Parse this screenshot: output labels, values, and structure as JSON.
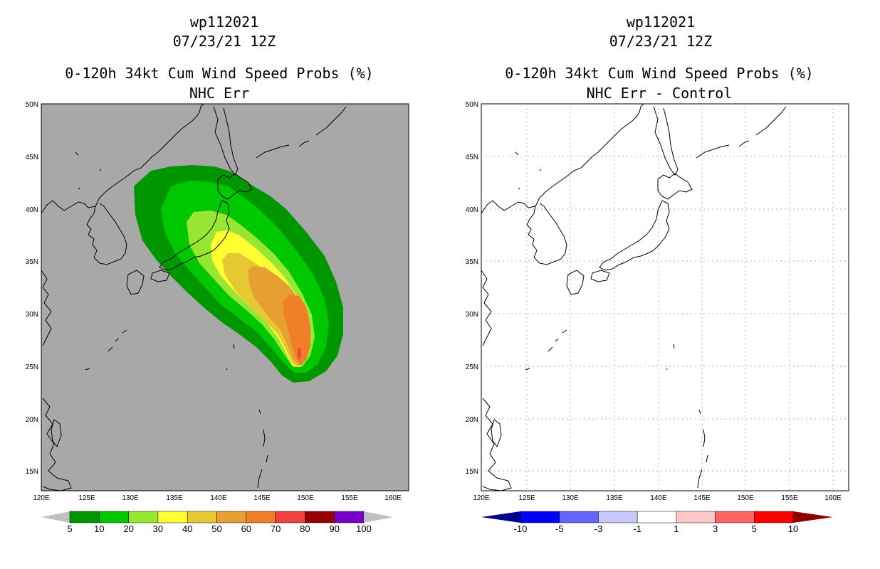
{
  "colors": {
    "land_left": "#a8a8a8",
    "ocean_left": "#a8a8a8",
    "coast": "#000000",
    "grid": "#b0b0b0"
  },
  "left_panel": {
    "title_line1": "wp112021",
    "title_line2": "07/23/21 12Z",
    "title_line3": "0-120h 34kt Cum Wind Speed Probs (%)",
    "title_line4": "NHC Err",
    "lat_labels": [
      "50N",
      "45N",
      "40N",
      "35N",
      "30N",
      "25N",
      "20N",
      "15N"
    ],
    "lon_labels": [
      "120E",
      "125E",
      "130E",
      "135E",
      "140E",
      "145E",
      "150E",
      "155E",
      "160E"
    ],
    "colorbar": {
      "labels": [
        "5",
        "10",
        "20",
        "30",
        "40",
        "50",
        "60",
        "70",
        "80",
        "90",
        "100"
      ],
      "colors": [
        "#009600",
        "#00c800",
        "#96e632",
        "#ffff32",
        "#e6c832",
        "#e6a032",
        "#f07d28",
        "#f04040",
        "#960000",
        "#7800c8"
      ],
      "end_left": "#c0c0c0",
      "end_right": "#c0c0c0"
    }
  },
  "right_panel": {
    "title_line1": "wp112021",
    "title_line2": "07/23/21 12Z",
    "title_line3": "0-120h 34kt Cum Wind Speed Probs (%)",
    "title_line4": "NHC Err - Control",
    "lat_labels": [
      "50N",
      "45N",
      "40N",
      "35N",
      "30N",
      "25N",
      "20N",
      "15N"
    ],
    "lon_labels": [
      "120E",
      "125E",
      "130E",
      "135E",
      "140E",
      "145E",
      "150E",
      "155E",
      "160E"
    ],
    "colorbar": {
      "labels": [
        "-10",
        "-5",
        "-3",
        "-1",
        "1",
        "3",
        "5",
        "10"
      ],
      "colors": [
        "#0000ff",
        "#6464ff",
        "#c8c8ff",
        "#ffffff",
        "#ffc8c8",
        "#ff6464",
        "#ff0000"
      ],
      "end_left": "#00008c",
      "end_right": "#8c0000"
    }
  }
}
